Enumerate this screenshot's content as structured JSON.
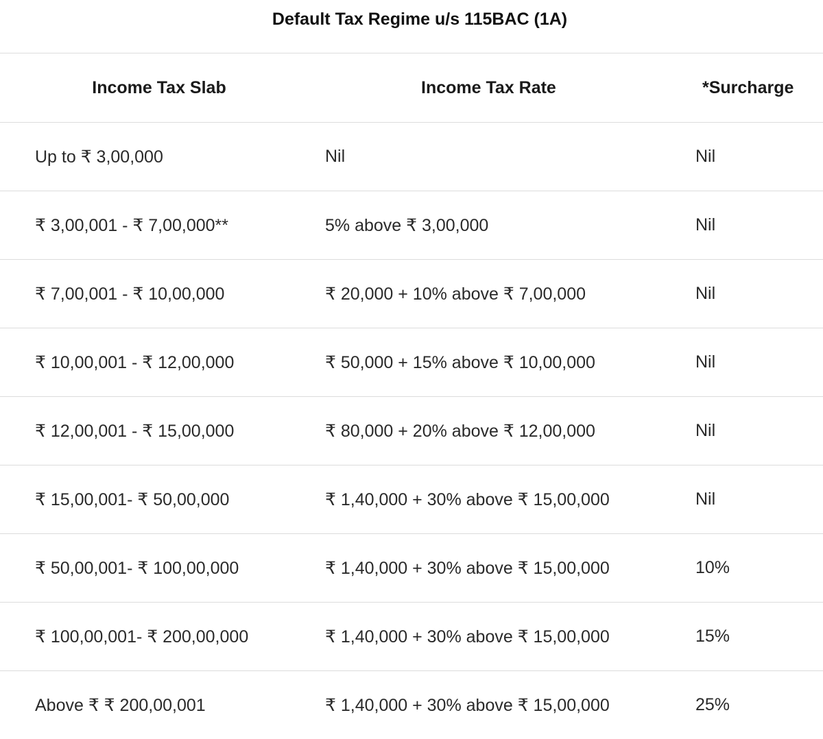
{
  "title": "Default Tax Regime u/s 115BAC (1A)",
  "headers": {
    "slab": "Income Tax Slab",
    "rate": "Income Tax Rate",
    "surcharge": "*Surcharge"
  },
  "rows": [
    {
      "slab": "Up to ₹ 3,00,000",
      "rate": "Nil",
      "surcharge": "Nil"
    },
    {
      "slab": "₹ 3,00,001 - ₹ 7,00,000**",
      "rate": "5% above ₹ 3,00,000",
      "surcharge": "Nil"
    },
    {
      "slab": "₹ 7,00,001 - ₹ 10,00,000",
      "rate": "₹ 20,000 + 10% above ₹ 7,00,000",
      "surcharge": "Nil"
    },
    {
      "slab": "₹ 10,00,001 - ₹ 12,00,000",
      "rate": "₹ 50,000 + 15% above ₹ 10,00,000",
      "surcharge": "Nil"
    },
    {
      "slab": "₹ 12,00,001 - ₹ 15,00,000",
      "rate": "₹ 80,000 + 20% above ₹ 12,00,000",
      "surcharge": "Nil"
    },
    {
      "slab": "₹ 15,00,001- ₹ 50,00,000",
      "rate": "₹ 1,40,000 + 30% above ₹ 15,00,000",
      "surcharge": "Nil"
    },
    {
      "slab": "₹ 50,00,001- ₹ 100,00,000",
      "rate": "₹ 1,40,000 + 30% above ₹ 15,00,000",
      "surcharge": "10%"
    },
    {
      "slab": "₹ 100,00,001- ₹ 200,00,000",
      "rate": "₹ 1,40,000 + 30% above ₹ 15,00,000",
      "surcharge": "15%"
    },
    {
      "slab": "Above ₹ ₹ 200,00,001",
      "rate": "₹ 1,40,000 + 30% above ₹ 15,00,000",
      "surcharge": "25%"
    }
  ]
}
